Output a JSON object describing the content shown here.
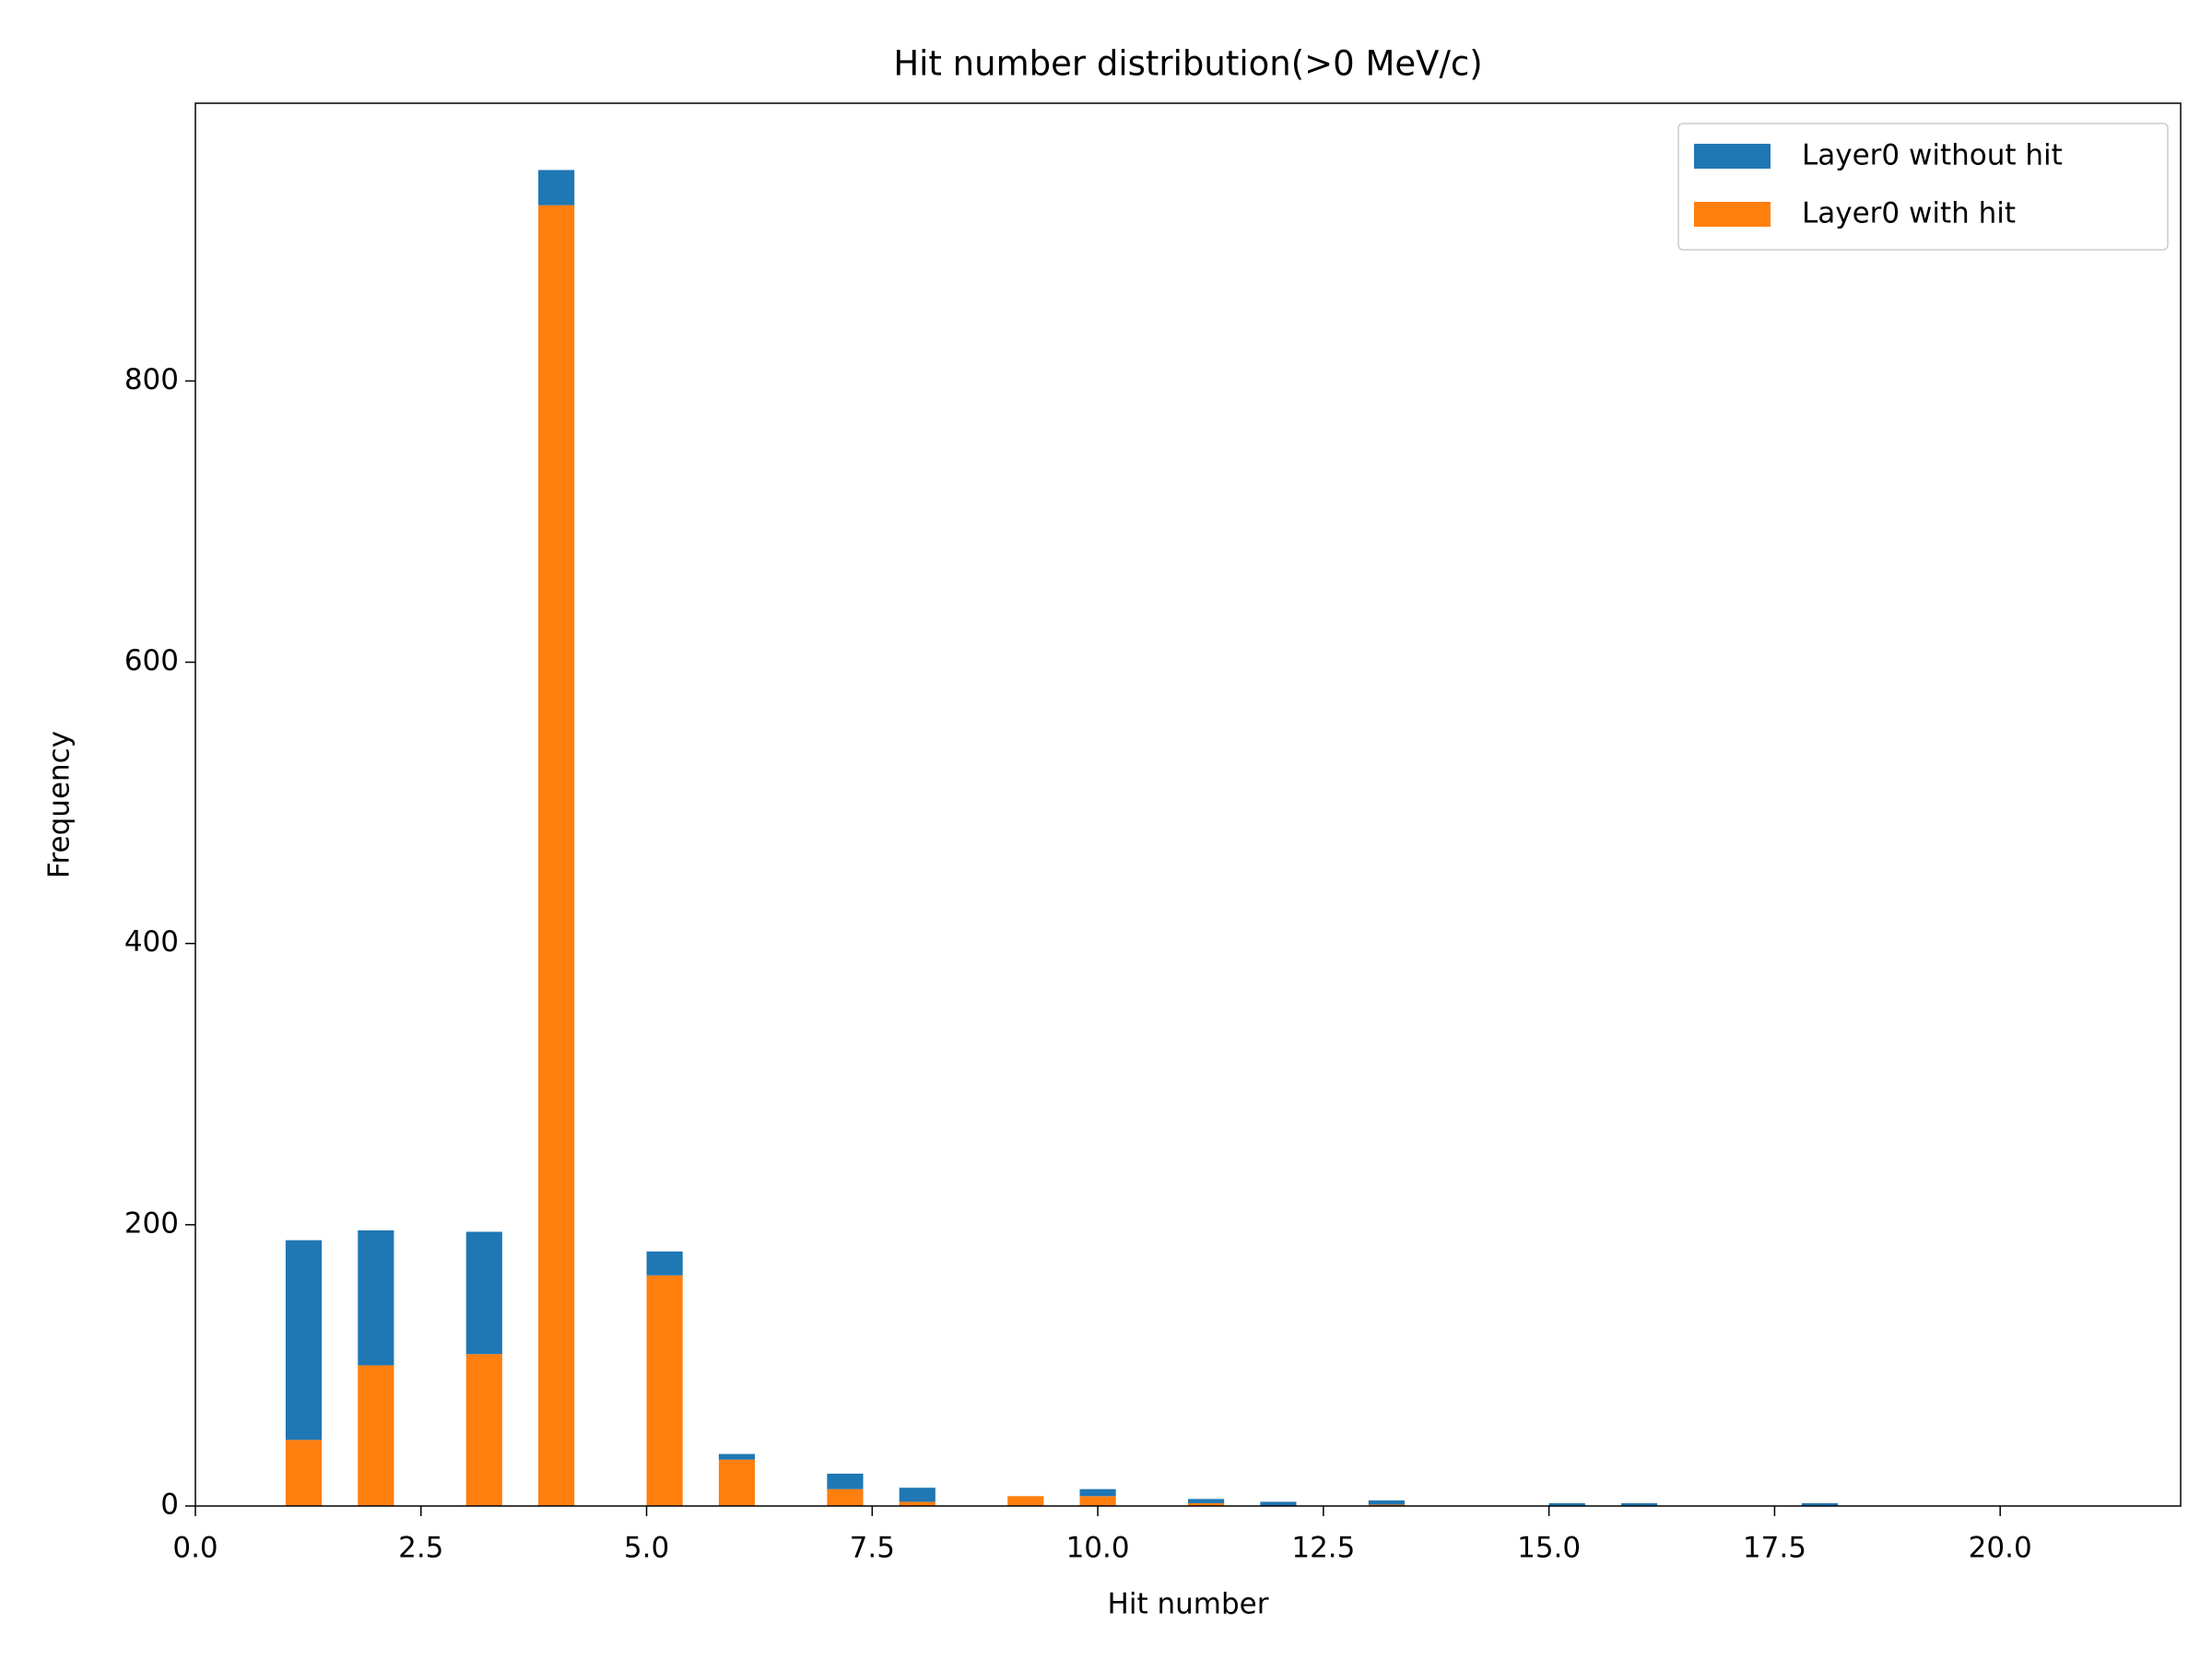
{
  "chart_data": {
    "type": "histogram",
    "title": "Hit number distribution(>0 MeV/c)",
    "x_label": "Hit number",
    "y_label": "Frequency",
    "bins": [
      1,
      1.4,
      1.8,
      2.2,
      2.6,
      3,
      3.4,
      3.8,
      4.2,
      4.6,
      5,
      5.4,
      5.8,
      6.2,
      6.6,
      7,
      7.4,
      7.8,
      8.2,
      8.6,
      9,
      9.4,
      9.8,
      10.2,
      10.6,
      11,
      11.4,
      11.8,
      12.2,
      12.6,
      13,
      13.4,
      13.8,
      14.2,
      14.6,
      15,
      15.4,
      15.8,
      16.2,
      16.6,
      17,
      17.4,
      17.8,
      18.2,
      18.6,
      19,
      19.4,
      19.8,
      20.2,
      20.6,
      21
    ],
    "stacked": true,
    "series": [
      {
        "name": "Layer0 without hit",
        "color": "#1f77b4",
        "values": [
          142,
          0,
          96,
          0,
          0,
          87,
          0,
          25,
          0,
          0,
          17,
          0,
          4,
          0,
          0,
          11,
          0,
          10,
          0,
          0,
          0,
          0,
          5,
          0,
          0,
          3,
          0,
          3,
          0,
          0,
          3,
          0,
          0,
          0,
          0,
          2,
          0,
          2,
          0,
          0,
          0,
          0,
          2,
          0,
          0,
          0,
          0,
          0,
          0,
          0
        ]
      },
      {
        "name": "Layer0 with hit",
        "color": "#ff7f0e",
        "values": [
          47,
          0,
          100,
          0,
          0,
          108,
          0,
          925,
          0,
          0,
          164,
          0,
          33,
          0,
          0,
          12,
          0,
          3,
          0,
          0,
          7,
          0,
          7,
          0,
          0,
          2,
          0,
          0,
          0,
          0,
          1,
          0,
          0,
          0,
          0,
          0,
          0,
          0,
          0,
          0,
          0,
          0,
          0,
          0,
          0,
          0,
          0,
          0,
          0,
          0
        ]
      }
    ],
    "xlim": [
      0,
      22
    ],
    "ylim": [
      0,
      997.5
    ],
    "xticks": [
      {
        "value": 0,
        "label": "0.0"
      },
      2.5,
      {
        "value": 5,
        "label": "5.0"
      },
      7.5,
      {
        "value": 10,
        "label": "10.0"
      },
      12.5,
      {
        "value": 15,
        "label": "15.0"
      },
      17.5,
      {
        "value": 20,
        "label": "20.0"
      }
    ],
    "yticks": [
      0,
      200,
      400,
      600,
      800
    ],
    "legend": "upper right",
    "grid": false
  }
}
